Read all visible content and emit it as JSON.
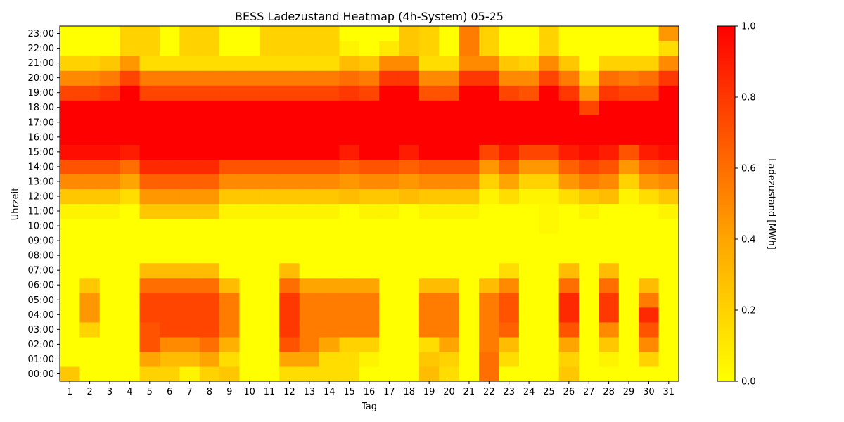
{
  "chart_data": {
    "type": "heatmap",
    "title": "BESS Ladezustand Heatmap (4h-System) 05-25",
    "xlabel": "Tag",
    "ylabel": "Uhrzeit",
    "colorbar_label": "Ladezustand [MWh]",
    "colorbar_ticks": [
      "0.0",
      "0.2",
      "0.4",
      "0.6",
      "0.8",
      "1.0"
    ],
    "colormap": [
      "#ffff00",
      "#ffd200",
      "#ffa500",
      "#ff6e00",
      "#ff3700",
      "#ff0000"
    ],
    "vmin": 0,
    "vmax": 1,
    "x": [
      "1",
      "2",
      "3",
      "4",
      "5",
      "6",
      "7",
      "8",
      "9",
      "10",
      "11",
      "12",
      "13",
      "14",
      "15",
      "16",
      "17",
      "18",
      "19",
      "20",
      "21",
      "22",
      "23",
      "24",
      "25",
      "26",
      "27",
      "28",
      "29",
      "30",
      "31"
    ],
    "y": [
      "00:00",
      "01:00",
      "02:00",
      "03:00",
      "04:00",
      "05:00",
      "06:00",
      "07:00",
      "08:00",
      "09:00",
      "10:00",
      "11:00",
      "12:00",
      "13:00",
      "14:00",
      "15:00",
      "16:00",
      "17:00",
      "18:00",
      "19:00",
      "20:00",
      "21:00",
      "22:00",
      "23:00"
    ],
    "values": [
      [
        0.25,
        0,
        0,
        0,
        0.2,
        0.2,
        0.05,
        0.2,
        0.25,
        0,
        0,
        0.15,
        0.15,
        0.15,
        0.15,
        0,
        0,
        0,
        0.3,
        0.15,
        0,
        0.6,
        0,
        0,
        0,
        0.25,
        0,
        0,
        0,
        0,
        0
      ],
      [
        0,
        0,
        0,
        0,
        0.4,
        0.3,
        0.3,
        0.4,
        0.15,
        0,
        0,
        0.4,
        0.4,
        0.15,
        0.15,
        0.05,
        0,
        0,
        0.25,
        0.2,
        0,
        0.6,
        0.15,
        0,
        0,
        0.2,
        0,
        0.05,
        0,
        0.2,
        0
      ],
      [
        0,
        0,
        0,
        0,
        0.7,
        0.5,
        0.5,
        0.6,
        0.35,
        0,
        0,
        0.7,
        0.55,
        0.4,
        0.2,
        0.2,
        0,
        0,
        0.15,
        0.4,
        0,
        0.55,
        0.3,
        0,
        0,
        0.4,
        0,
        0.25,
        0,
        0.5,
        0
      ],
      [
        0,
        0.2,
        0,
        0,
        0.7,
        0.75,
        0.75,
        0.75,
        0.55,
        0,
        0,
        0.8,
        0.55,
        0.55,
        0.55,
        0.55,
        0,
        0,
        0.55,
        0.55,
        0,
        0.55,
        0.65,
        0,
        0,
        0.7,
        0,
        0.5,
        0,
        0.7,
        0
      ],
      [
        0,
        0.45,
        0,
        0,
        0.75,
        0.75,
        0.75,
        0.75,
        0.55,
        0,
        0,
        0.8,
        0.55,
        0.55,
        0.55,
        0.55,
        0,
        0,
        0.55,
        0.55,
        0,
        0.55,
        0.7,
        0,
        0,
        0.85,
        0,
        0.8,
        0,
        0.85,
        0
      ],
      [
        0,
        0.45,
        0,
        0,
        0.75,
        0.75,
        0.75,
        0.75,
        0.55,
        0,
        0,
        0.8,
        0.55,
        0.55,
        0.55,
        0.55,
        0,
        0,
        0.55,
        0.55,
        0,
        0.55,
        0.7,
        0,
        0,
        0.85,
        0,
        0.8,
        0,
        0.55,
        0
      ],
      [
        0,
        0.25,
        0,
        0,
        0.6,
        0.6,
        0.6,
        0.6,
        0.3,
        0,
        0,
        0.6,
        0.4,
        0.4,
        0.4,
        0.4,
        0,
        0,
        0.3,
        0.3,
        0,
        0.3,
        0.5,
        0,
        0,
        0.6,
        0,
        0.6,
        0,
        0.3,
        0
      ],
      [
        0,
        0,
        0,
        0,
        0.3,
        0.3,
        0.3,
        0.3,
        0,
        0,
        0,
        0.3,
        0,
        0,
        0,
        0,
        0,
        0,
        0,
        0,
        0,
        0,
        0.15,
        0,
        0,
        0.3,
        0,
        0.3,
        0,
        0,
        0
      ],
      [
        0,
        0,
        0,
        0,
        0,
        0,
        0,
        0,
        0,
        0,
        0,
        0,
        0,
        0,
        0,
        0,
        0,
        0,
        0,
        0,
        0,
        0,
        0,
        0,
        0,
        0,
        0,
        0,
        0,
        0,
        0
      ],
      [
        0,
        0,
        0,
        0,
        0,
        0,
        0,
        0,
        0,
        0,
        0,
        0,
        0,
        0,
        0,
        0,
        0,
        0,
        0,
        0,
        0,
        0,
        0,
        0,
        0,
        0,
        0,
        0,
        0,
        0,
        0
      ],
      [
        0,
        0,
        0,
        0,
        0,
        0,
        0,
        0,
        0,
        0,
        0,
        0,
        0,
        0,
        0,
        0,
        0,
        0,
        0,
        0,
        0,
        0,
        0,
        0,
        0.03,
        0,
        0,
        0,
        0,
        0,
        0
      ],
      [
        0.05,
        0.05,
        0.05,
        0,
        0.25,
        0.25,
        0.25,
        0.25,
        0.05,
        0.05,
        0.05,
        0.05,
        0.05,
        0.05,
        0,
        0.05,
        0.05,
        0,
        0.05,
        0.05,
        0.05,
        0,
        0,
        0,
        0.03,
        0,
        0.05,
        0,
        0,
        0,
        0.05
      ],
      [
        0.25,
        0.25,
        0.25,
        0.15,
        0.45,
        0.45,
        0.45,
        0.45,
        0.25,
        0.25,
        0.25,
        0.25,
        0.25,
        0.25,
        0.3,
        0.25,
        0.25,
        0.3,
        0.25,
        0.25,
        0.25,
        0.05,
        0.15,
        0.05,
        0.05,
        0.15,
        0.25,
        0.3,
        0.05,
        0.15,
        0.25
      ],
      [
        0.5,
        0.5,
        0.5,
        0.4,
        0.65,
        0.65,
        0.65,
        0.65,
        0.5,
        0.5,
        0.5,
        0.5,
        0.5,
        0.5,
        0.45,
        0.5,
        0.5,
        0.45,
        0.5,
        0.5,
        0.5,
        0.2,
        0.4,
        0.2,
        0.2,
        0.45,
        0.55,
        0.5,
        0.2,
        0.45,
        0.5
      ],
      [
        0.7,
        0.7,
        0.7,
        0.6,
        0.85,
        0.85,
        0.85,
        0.85,
        0.7,
        0.7,
        0.7,
        0.7,
        0.7,
        0.7,
        0.65,
        0.7,
        0.7,
        0.65,
        0.7,
        0.7,
        0.7,
        0.45,
        0.65,
        0.45,
        0.45,
        0.65,
        0.75,
        0.7,
        0.45,
        0.65,
        0.7
      ],
      [
        0.95,
        0.95,
        0.95,
        0.9,
        1,
        1,
        1,
        1,
        1,
        1,
        1,
        1,
        1,
        1,
        0.9,
        1,
        1,
        0.9,
        1,
        1,
        1,
        0.75,
        0.9,
        0.75,
        0.75,
        0.9,
        0.95,
        0.9,
        0.7,
        0.9,
        0.95
      ],
      [
        1,
        1,
        1,
        1,
        1,
        1,
        1,
        1,
        1,
        1,
        1,
        1,
        1,
        1,
        1,
        1,
        1,
        1,
        1,
        1,
        1,
        1,
        1,
        1,
        1,
        1,
        1,
        1,
        1,
        1,
        1
      ],
      [
        1,
        1,
        1,
        1,
        1,
        1,
        1,
        1,
        1,
        1,
        1,
        1,
        1,
        1,
        1,
        1,
        1,
        1,
        1,
        1,
        1,
        1,
        1,
        1,
        1,
        1,
        1,
        1,
        1,
        1,
        1
      ],
      [
        1,
        1,
        1,
        1,
        1,
        1,
        1,
        1,
        1,
        1,
        1,
        1,
        1,
        1,
        1,
        1,
        1,
        1,
        1,
        1,
        1,
        1,
        1,
        1,
        1,
        1,
        0.75,
        1,
        1,
        1,
        1
      ],
      [
        0.75,
        0.75,
        0.8,
        1,
        0.75,
        0.75,
        0.75,
        0.75,
        0.75,
        0.75,
        0.75,
        0.75,
        0.75,
        0.75,
        0.8,
        0.75,
        1,
        1,
        0.7,
        0.7,
        1,
        1,
        0.75,
        0.7,
        1,
        0.8,
        0.45,
        0.8,
        0.75,
        0.75,
        1
      ],
      [
        0.5,
        0.5,
        0.55,
        0.75,
        0.55,
        0.55,
        0.55,
        0.55,
        0.55,
        0.55,
        0.55,
        0.55,
        0.55,
        0.55,
        0.6,
        0.55,
        0.8,
        0.8,
        0.5,
        0.5,
        0.8,
        0.8,
        0.5,
        0.5,
        0.75,
        0.55,
        0.2,
        0.6,
        0.55,
        0.6,
        0.8
      ],
      [
        0.2,
        0.2,
        0.25,
        0.45,
        0.15,
        0.15,
        0.15,
        0.15,
        0.15,
        0.15,
        0.15,
        0.15,
        0.15,
        0.15,
        0.3,
        0.25,
        0.5,
        0.5,
        0.15,
        0.15,
        0.5,
        0.5,
        0.25,
        0.2,
        0.5,
        0.25,
        0,
        0.2,
        0.2,
        0.2,
        0.5
      ],
      [
        0,
        0,
        0,
        0.2,
        0.2,
        0,
        0.2,
        0.2,
        0,
        0,
        0.2,
        0.2,
        0.2,
        0.2,
        0.05,
        0,
        0.1,
        0.25,
        0.2,
        0,
        0.55,
        0.2,
        0,
        0,
        0.2,
        0,
        0,
        0,
        0,
        0,
        0.15
      ],
      [
        0,
        0,
        0,
        0.2,
        0.2,
        0,
        0.2,
        0.2,
        0,
        0,
        0.2,
        0.2,
        0.2,
        0.2,
        0,
        0,
        0,
        0.25,
        0.2,
        0,
        0.55,
        0.2,
        0,
        0,
        0.2,
        0,
        0,
        0,
        0,
        0,
        0.45
      ]
    ]
  }
}
